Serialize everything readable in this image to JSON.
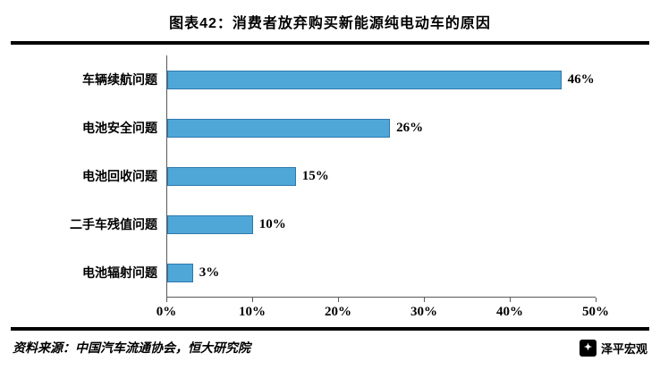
{
  "title": "图表42：消费者放弃购买新能源纯电动车的原因",
  "chart_data": {
    "type": "bar",
    "orientation": "horizontal",
    "title": "图表42：消费者放弃购买新能源纯电动车的原因",
    "categories": [
      "车辆续航问题",
      "电池安全问题",
      "电池回收问题",
      "二手车残值问题",
      "电池辐射问题"
    ],
    "values": [
      46,
      26,
      15,
      10,
      3
    ],
    "value_labels": [
      "46%",
      "26%",
      "15%",
      "10%",
      "3%"
    ],
    "x_ticks": [
      "0%",
      "10%",
      "20%",
      "30%",
      "40%",
      "50%"
    ],
    "xlim": [
      0,
      50
    ],
    "xlabel": "",
    "ylabel": "",
    "grid": false,
    "legend": null,
    "bar_color": "#4FA7D8",
    "bar_border_color": "#2E78AE"
  },
  "footer": {
    "source": "资料来源：中国汽车流通协会，恒大研究院",
    "brand": "泽平宏观",
    "logo_icon": "zeping-macro-logo",
    "logo_glyph": "✦"
  }
}
